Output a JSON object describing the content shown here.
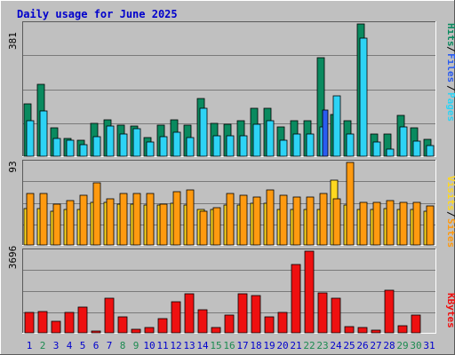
{
  "title": "Daily usage for June 2025",
  "colors": {
    "background": "#c0c0c0",
    "panel": "#c0c0c0",
    "border_dark": "#5a5a5a",
    "title": "#0000cc",
    "hits": "#0a8a5f",
    "files": "#2dd3f5",
    "pages": "#2a5cf0",
    "visits": "#ffd820",
    "sites": "#ff9a10",
    "kbytes": "#ee1010",
    "weekend_label": "#1c8a50",
    "weekday_label": "#0000cc"
  },
  "chart_data": [
    {
      "type": "bar",
      "panel": "top",
      "max_label": "381",
      "legend": {
        "pages": "Pages",
        "files": "Files",
        "hits": "Hits",
        "separator": "/"
      },
      "categories": [
        "1",
        "2",
        "3",
        "4",
        "5",
        "6",
        "7",
        "8",
        "9",
        "10",
        "11",
        "12",
        "13",
        "14",
        "15",
        "16",
        "17",
        "18",
        "19",
        "20",
        "21",
        "22",
        "23",
        "24",
        "25",
        "26",
        "27",
        "28",
        "29",
        "30",
        "31"
      ],
      "series": [
        {
          "name": "Hits",
          "values": [
            150,
            207,
            82,
            52,
            45,
            94,
            104,
            90,
            87,
            54,
            90,
            104,
            90,
            165,
            94,
            93,
            102,
            138,
            138,
            85,
            102,
            102,
            283,
            121,
            102,
            381,
            63,
            63,
            117,
            82,
            49
          ]
        },
        {
          "name": "Files",
          "values": [
            103,
            130,
            51,
            45,
            32,
            55,
            88,
            65,
            80,
            40,
            55,
            68,
            54,
            138,
            58,
            60,
            58,
            93,
            103,
            45,
            64,
            65,
            85,
            175,
            65,
            339,
            41,
            20,
            85,
            44,
            31
          ]
        },
        {
          "name": "Pages",
          "values": [
            0,
            0,
            0,
            0,
            0,
            0,
            0,
            0,
            0,
            0,
            0,
            0,
            0,
            0,
            0,
            0,
            0,
            0,
            0,
            0,
            0,
            0,
            134,
            0,
            0,
            0,
            0,
            0,
            0,
            0,
            0
          ]
        }
      ]
    },
    {
      "type": "bar",
      "panel": "middle",
      "max_label": "93",
      "legend": {
        "sites": "Sites",
        "visits": "Visits",
        "separator": "/"
      },
      "categories": [
        "1",
        "2",
        "3",
        "4",
        "5",
        "6",
        "7",
        "8",
        "9",
        "10",
        "11",
        "12",
        "13",
        "14",
        "15",
        "16",
        "17",
        "18",
        "19",
        "20",
        "21",
        "22",
        "23",
        "24",
        "25",
        "26",
        "27",
        "28",
        "29",
        "30",
        "31"
      ],
      "series": [
        {
          "name": "Visits",
          "values": [
            41,
            41,
            38,
            40,
            40,
            48,
            48,
            46,
            46,
            45,
            45,
            47,
            45,
            40,
            40,
            45,
            45,
            47,
            47,
            40,
            40,
            40,
            40,
            73,
            45,
            40,
            40,
            41,
            40,
            40,
            38
          ]
        },
        {
          "name": "Sites",
          "values": [
            58,
            58,
            46,
            50,
            56,
            70,
            52,
            58,
            58,
            58,
            46,
            60,
            62,
            38,
            42,
            58,
            56,
            54,
            62,
            56,
            54,
            54,
            58,
            52,
            93,
            48,
            48,
            50,
            48,
            48,
            44
          ]
        }
      ]
    },
    {
      "type": "bar",
      "panel": "bottom",
      "max_label": "3696",
      "legend": {
        "kbytes": "KBytes"
      },
      "categories": [
        "1",
        "2",
        "3",
        "4",
        "5",
        "6",
        "7",
        "8",
        "9",
        "10",
        "11",
        "12",
        "13",
        "14",
        "15",
        "16",
        "17",
        "18",
        "19",
        "20",
        "21",
        "22",
        "23",
        "24",
        "25",
        "26",
        "27",
        "28",
        "29",
        "30",
        "31"
      ],
      "series": [
        {
          "name": "KBytes",
          "values": [
            926,
            956,
            537,
            920,
            1167,
            96,
            1575,
            716,
            144,
            231,
            660,
            1418,
            1764,
            1042,
            250,
            804,
            1772,
            1699,
            716,
            926,
            3074,
            3696,
            1793,
            1575,
            300,
            250,
            121,
            1910,
            314,
            815,
            0
          ]
        }
      ]
    }
  ],
  "days": [
    "1",
    "2",
    "3",
    "4",
    "5",
    "6",
    "7",
    "8",
    "9",
    "10",
    "11",
    "12",
    "13",
    "14",
    "15",
    "16",
    "17",
    "18",
    "19",
    "20",
    "21",
    "22",
    "23",
    "24",
    "25",
    "26",
    "27",
    "28",
    "29",
    "30",
    "31"
  ],
  "weekend_days": [
    1,
    7,
    8,
    14,
    15,
    21,
    22,
    28,
    29
  ]
}
